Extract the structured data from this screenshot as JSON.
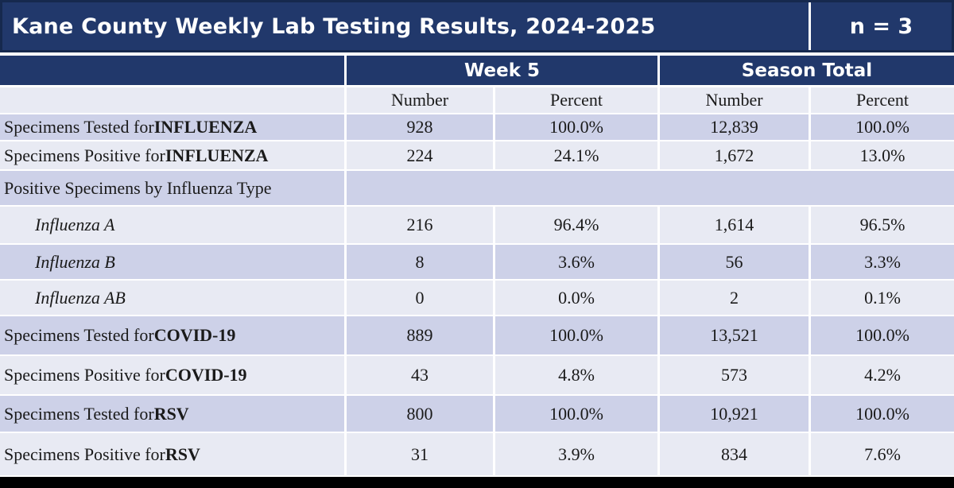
{
  "title_bar": {
    "title": "Kane County Weekly Lab Testing Results, 2024-2025",
    "n_value": "n = 3"
  },
  "column_groups": {
    "week": "Week 5",
    "season": "Season Total"
  },
  "sub_headers": [
    "",
    "Number",
    "Percent",
    "Number",
    "Percent"
  ],
  "rows": [
    {
      "prefix": "Specimens Tested for ",
      "bold": "INFLUENZA",
      "italic": false,
      "indent": false,
      "merged": false,
      "values": [
        "928",
        "100.0%",
        "12,839",
        "100.0%"
      ]
    },
    {
      "prefix": "Specimens Positive for ",
      "bold": "INFLUENZA",
      "italic": false,
      "indent": false,
      "merged": false,
      "values": [
        "224",
        "24.1%",
        "1,672",
        "13.0%"
      ]
    },
    {
      "prefix": "Positive Specimens by Influenza Type",
      "bold": "",
      "italic": false,
      "indent": false,
      "merged": true,
      "values": []
    },
    {
      "prefix": "Influenza A",
      "bold": "",
      "italic": true,
      "indent": true,
      "merged": false,
      "values": [
        "216",
        "96.4%",
        "1,614",
        "96.5%"
      ]
    },
    {
      "prefix": "Influenza B",
      "bold": "",
      "italic": true,
      "indent": true,
      "merged": false,
      "values": [
        "8",
        "3.6%",
        "56",
        "3.3%"
      ]
    },
    {
      "prefix": "Influenza AB",
      "bold": "",
      "italic": true,
      "indent": true,
      "merged": false,
      "values": [
        "0",
        "0.0%",
        "2",
        "0.1%"
      ]
    },
    {
      "prefix": "Specimens Tested for ",
      "bold": "COVID-19",
      "italic": false,
      "indent": false,
      "merged": false,
      "values": [
        "889",
        "100.0%",
        "13,521",
        "100.0%"
      ]
    },
    {
      "prefix": "Specimens Positive for ",
      "bold": "COVID-19",
      "italic": false,
      "indent": false,
      "merged": false,
      "values": [
        "43",
        "4.8%",
        "573",
        "4.2%"
      ]
    },
    {
      "prefix": "Specimens Tested for ",
      "bold": "RSV",
      "italic": false,
      "indent": false,
      "merged": false,
      "values": [
        "800",
        "100.0%",
        "10,921",
        "100.0%"
      ]
    },
    {
      "prefix": "Specimens Positive for ",
      "bold": "RSV",
      "italic": false,
      "indent": false,
      "merged": false,
      "values": [
        "31",
        "3.9%",
        "834",
        "7.6%"
      ]
    }
  ],
  "colors": {
    "header_navy": "#21386B",
    "header_border": "#16294E",
    "row_lavender": "#CDD1E8",
    "row_light": "#E8EAF3",
    "grid_line": "#FFFFFF",
    "text_dark": "#1A1A1A",
    "bottom_bar": "#000000"
  }
}
